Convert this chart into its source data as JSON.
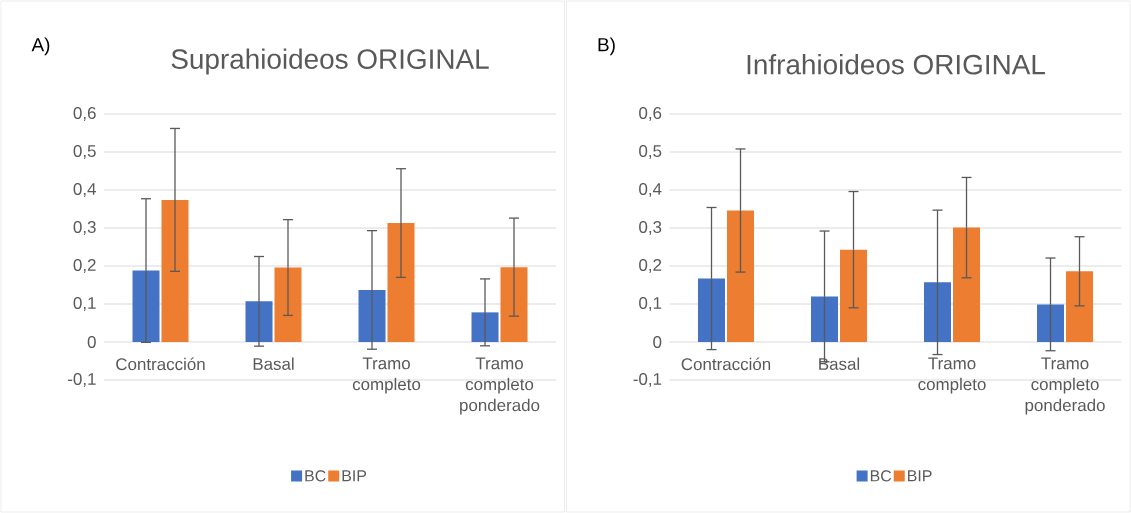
{
  "chart_data": [
    {
      "type": "bar",
      "title": "Suprahioideos ORIGINAL",
      "annotations": [
        "A)"
      ],
      "categories": [
        "Contracción",
        "Basal",
        "Tramo completo",
        "Tramo completo ponderado"
      ],
      "series": [
        {
          "name": "BC",
          "color": "#4472c4",
          "values": [
            0.188,
            0.107,
            0.137,
            0.078
          ],
          "errors": [
            0.189,
            0.118,
            0.156,
            0.088
          ]
        },
        {
          "name": "BIP",
          "color": "#ed7d31",
          "values": [
            0.374,
            0.196,
            0.313,
            0.197
          ],
          "errors": [
            0.188,
            0.126,
            0.143,
            0.129
          ]
        }
      ],
      "ylim": [
        -0.1,
        0.6
      ],
      "yticks": [
        {
          "value": -0.1,
          "label": "-0,1"
        },
        0,
        {
          "value": 0.1,
          "label": "0,1"
        },
        {
          "value": 0.2,
          "label": "0,2"
        },
        {
          "value": 0.3,
          "label": "0,3"
        },
        {
          "value": 0.4,
          "label": "0,4"
        },
        {
          "value": 0.5,
          "label": "0,5"
        },
        {
          "value": 0.6,
          "label": "0,6"
        }
      ],
      "grid": "y",
      "legend": "bottom"
    },
    {
      "type": "bar",
      "title": "Infrahioideos ORIGINAL",
      "annotations": [
        "B)"
      ],
      "categories": [
        "Contracción",
        "Basal",
        "Tramo completo",
        "Tramo completo ponderado"
      ],
      "series": [
        {
          "name": "BC",
          "color": "#4472c4",
          "values": [
            0.167,
            0.12,
            0.157,
            0.099
          ],
          "errors": [
            0.187,
            0.172,
            0.19,
            0.122
          ]
        },
        {
          "name": "BIP",
          "color": "#ed7d31",
          "values": [
            0.346,
            0.243,
            0.301,
            0.186
          ],
          "errors": [
            0.162,
            0.153,
            0.132,
            0.091
          ]
        }
      ],
      "ylim": [
        -0.1,
        0.6
      ],
      "yticks": [
        {
          "value": -0.1,
          "label": "-0,1"
        },
        0,
        {
          "value": 0.1,
          "label": "0,1"
        },
        {
          "value": 0.2,
          "label": "0,2"
        },
        {
          "value": 0.3,
          "label": "0,3"
        },
        {
          "value": 0.4,
          "label": "0,4"
        },
        {
          "value": 0.5,
          "label": "0,5"
        },
        {
          "value": 0.6,
          "label": "0,6"
        }
      ],
      "grid": "y",
      "legend": "bottom"
    }
  ]
}
